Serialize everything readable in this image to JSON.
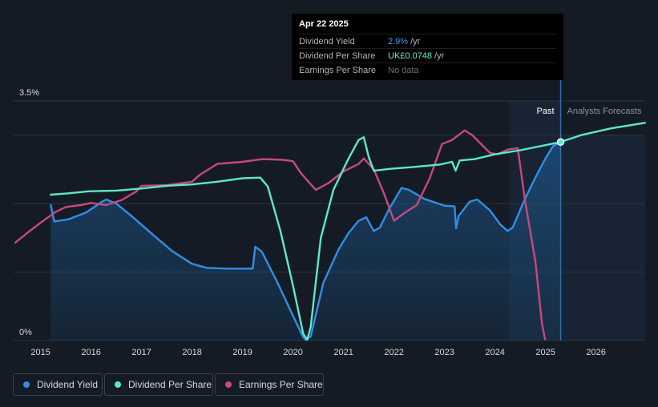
{
  "tooltip": {
    "date": "Apr 22 2025",
    "rows": [
      {
        "label": "Dividend Yield",
        "value": "2.9%",
        "unit": "/yr"
      },
      {
        "label": "Dividend Per Share",
        "value": "UK£0.0748",
        "unit": "/yr"
      },
      {
        "label": "Earnings Per Share",
        "value": "No data",
        "unit": ""
      }
    ]
  },
  "legend": {
    "items": [
      {
        "label": "Dividend Yield",
        "color": "#2f8fe6"
      },
      {
        "label": "Dividend Per Share",
        "color": "#5ce8c8"
      },
      {
        "label": "Earnings Per Share",
        "color": "#c8487f"
      }
    ]
  },
  "chart_data": {
    "type": "line",
    "y_tick_labels": [
      "3.5%",
      "0%"
    ],
    "ylim": [
      0,
      3.5
    ],
    "xlim": [
      2014.45,
      2026.97
    ],
    "x_tick_labels": [
      "2015",
      "2016",
      "2017",
      "2018",
      "2019",
      "2020",
      "2021",
      "2022",
      "2023",
      "2024",
      "2025",
      "2026"
    ],
    "past_label": "Past",
    "forecast_label": "Analysts Forecasts",
    "past_band_start": 2024.28,
    "divider": 2025.3,
    "marker": {
      "x": 2025.3,
      "y": 2.9
    },
    "grid": true,
    "legend_position": "bottom-left",
    "series": [
      {
        "name": "Dividend Yield",
        "color": "#2f8fe6",
        "fill": true,
        "points": [
          [
            2015.2,
            1.98
          ],
          [
            2015.27,
            1.74
          ],
          [
            2015.55,
            1.77
          ],
          [
            2015.9,
            1.87
          ],
          [
            2016.2,
            2.02
          ],
          [
            2016.3,
            2.06
          ],
          [
            2016.5,
            2.0
          ],
          [
            2016.8,
            1.82
          ],
          [
            2017.2,
            1.56
          ],
          [
            2017.6,
            1.31
          ],
          [
            2018.0,
            1.12
          ],
          [
            2018.3,
            1.06
          ],
          [
            2018.7,
            1.05
          ],
          [
            2019.2,
            1.05
          ],
          [
            2019.25,
            1.37
          ],
          [
            2019.38,
            1.3
          ],
          [
            2019.7,
            0.83
          ],
          [
            2020.0,
            0.36
          ],
          [
            2020.2,
            0.05
          ],
          [
            2020.25,
            0.01
          ],
          [
            2020.35,
            0.06
          ],
          [
            2020.6,
            0.84
          ],
          [
            2020.9,
            1.33
          ],
          [
            2021.1,
            1.57
          ],
          [
            2021.3,
            1.75
          ],
          [
            2021.45,
            1.8
          ],
          [
            2021.6,
            1.6
          ],
          [
            2021.72,
            1.65
          ],
          [
            2021.9,
            1.92
          ],
          [
            2022.15,
            2.23
          ],
          [
            2022.3,
            2.2
          ],
          [
            2022.6,
            2.07
          ],
          [
            2023.0,
            1.97
          ],
          [
            2023.2,
            1.96
          ],
          [
            2023.23,
            1.64
          ],
          [
            2023.28,
            1.82
          ],
          [
            2023.5,
            2.03
          ],
          [
            2023.65,
            2.06
          ],
          [
            2023.9,
            1.9
          ],
          [
            2024.1,
            1.7
          ],
          [
            2024.25,
            1.6
          ],
          [
            2024.35,
            1.65
          ],
          [
            2024.6,
            2.08
          ],
          [
            2024.8,
            2.38
          ],
          [
            2025.0,
            2.66
          ],
          [
            2025.15,
            2.84
          ],
          [
            2025.3,
            2.9
          ]
        ]
      },
      {
        "name": "Dividend Per Share",
        "color": "#5ce8c8",
        "fill": false,
        "points": [
          [
            2015.2,
            2.13
          ],
          [
            2015.55,
            2.15
          ],
          [
            2015.95,
            2.18
          ],
          [
            2016.5,
            2.19
          ],
          [
            2017.0,
            2.22
          ],
          [
            2017.5,
            2.26
          ],
          [
            2018.0,
            2.28
          ],
          [
            2018.5,
            2.32
          ],
          [
            2019.0,
            2.37
          ],
          [
            2019.35,
            2.38
          ],
          [
            2019.5,
            2.25
          ],
          [
            2019.75,
            1.6
          ],
          [
            2020.0,
            0.8
          ],
          [
            2020.2,
            0.1
          ],
          [
            2020.28,
            0.01
          ],
          [
            2020.35,
            0.2
          ],
          [
            2020.55,
            1.5
          ],
          [
            2020.8,
            2.2
          ],
          [
            2021.1,
            2.66
          ],
          [
            2021.3,
            2.93
          ],
          [
            2021.4,
            2.97
          ],
          [
            2021.5,
            2.68
          ],
          [
            2021.6,
            2.48
          ],
          [
            2021.95,
            2.51
          ],
          [
            2022.3,
            2.53
          ],
          [
            2022.9,
            2.57
          ],
          [
            2023.15,
            2.61
          ],
          [
            2023.22,
            2.48
          ],
          [
            2023.3,
            2.63
          ],
          [
            2023.6,
            2.65
          ],
          [
            2024.0,
            2.72
          ],
          [
            2024.5,
            2.78
          ],
          [
            2025.3,
            2.9
          ],
          [
            2025.7,
            3.0
          ],
          [
            2026.3,
            3.1
          ],
          [
            2026.97,
            3.18
          ]
        ]
      },
      {
        "name": "Earnings Per Share",
        "color": "#c8487f",
        "fill": false,
        "points": [
          [
            2014.5,
            1.43
          ],
          [
            2014.75,
            1.58
          ],
          [
            2015.0,
            1.72
          ],
          [
            2015.3,
            1.88
          ],
          [
            2015.5,
            1.95
          ],
          [
            2015.8,
            1.98
          ],
          [
            2016.0,
            2.01
          ],
          [
            2016.3,
            1.98
          ],
          [
            2016.6,
            2.05
          ],
          [
            2016.9,
            2.18
          ],
          [
            2017.0,
            2.26
          ],
          [
            2017.5,
            2.27
          ],
          [
            2018.0,
            2.32
          ],
          [
            2018.15,
            2.42
          ],
          [
            2018.5,
            2.58
          ],
          [
            2019.0,
            2.61
          ],
          [
            2019.4,
            2.65
          ],
          [
            2019.8,
            2.64
          ],
          [
            2020.0,
            2.62
          ],
          [
            2020.15,
            2.45
          ],
          [
            2020.45,
            2.2
          ],
          [
            2020.7,
            2.3
          ],
          [
            2021.0,
            2.47
          ],
          [
            2021.3,
            2.58
          ],
          [
            2021.4,
            2.66
          ],
          [
            2021.6,
            2.5
          ],
          [
            2021.8,
            2.15
          ],
          [
            2022.0,
            1.75
          ],
          [
            2022.2,
            1.86
          ],
          [
            2022.45,
            1.98
          ],
          [
            2022.7,
            2.36
          ],
          [
            2022.95,
            2.87
          ],
          [
            2023.15,
            2.93
          ],
          [
            2023.4,
            3.07
          ],
          [
            2023.55,
            3.0
          ],
          [
            2023.75,
            2.85
          ],
          [
            2023.9,
            2.74
          ],
          [
            2024.05,
            2.72
          ],
          [
            2024.25,
            2.79
          ],
          [
            2024.45,
            2.81
          ],
          [
            2024.6,
            2.02
          ],
          [
            2024.8,
            1.16
          ],
          [
            2024.93,
            0.25
          ],
          [
            2024.99,
            0.02
          ]
        ]
      }
    ]
  }
}
